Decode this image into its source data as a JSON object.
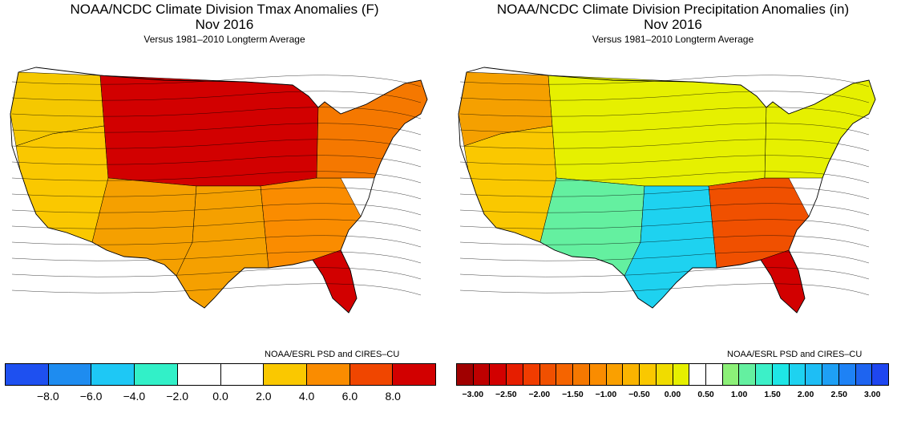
{
  "left": {
    "title": "NOAA/NCDC Climate Division Tmax Anomalies (F)",
    "subtitle": "Nov 2016",
    "note": "Versus 1981–2010 Longterm Average",
    "credit": "NOAA/ESRL PSD and CIRES–CU",
    "colorbar": {
      "colors": [
        "#1e50f0",
        "#1e8cf0",
        "#1ec8f5",
        "#32f0c8",
        "#ffffff",
        "#ffffff",
        "#fac800",
        "#fa8c00",
        "#f04600",
        "#d20000"
      ],
      "ticks": [
        "−8.0",
        "−6.0",
        "−4.0",
        "−2.0",
        "0.0",
        "2.0",
        "4.0",
        "6.0",
        "8.0"
      ]
    },
    "map_colors": {
      "nw": "#f5c800",
      "ne": "#f57800",
      "se": "#d20000",
      "sw": "#f5a000",
      "center": "#d20000",
      "south": "#f5a000",
      "east": "#fa8c00",
      "west": "#fac800"
    }
  },
  "right": {
    "title": "NOAA/NCDC Climate Division Precipitation Anomalies (in)",
    "subtitle": "Nov 2016",
    "note": "Versus 1981–2010 Longterm Average",
    "credit": "NOAA/ESRL PSD and CIRES–CU",
    "colorbar": {
      "colors": [
        "#a00000",
        "#be0000",
        "#d20000",
        "#e61e00",
        "#f03c00",
        "#f05000",
        "#f56400",
        "#f57800",
        "#fa8c00",
        "#faa000",
        "#fab400",
        "#fac800",
        "#f0dc00",
        "#e6f000",
        "#ffffff",
        "#ffffff",
        "#8cf078",
        "#64f0a0",
        "#3cf0c8",
        "#1ee6e6",
        "#1ed2f0",
        "#1ebef5",
        "#1ea0f5",
        "#1e82f5",
        "#1e64f0",
        "#1e46f0"
      ],
      "ticks": [
        "−3.00",
        "−2.50",
        "−2.00",
        "−1.50",
        "−1.00",
        "−0.50",
        "0.00",
        "0.50",
        "1.00",
        "1.50",
        "2.00",
        "2.50",
        "3.00"
      ]
    },
    "map_colors": {
      "nw": "#f5a000",
      "ne": "#e6f000",
      "se": "#d20000",
      "sw": "#64f0a0",
      "center": "#e6f000",
      "south": "#1ed2f0",
      "east": "#f05000",
      "west": "#fac800"
    }
  }
}
